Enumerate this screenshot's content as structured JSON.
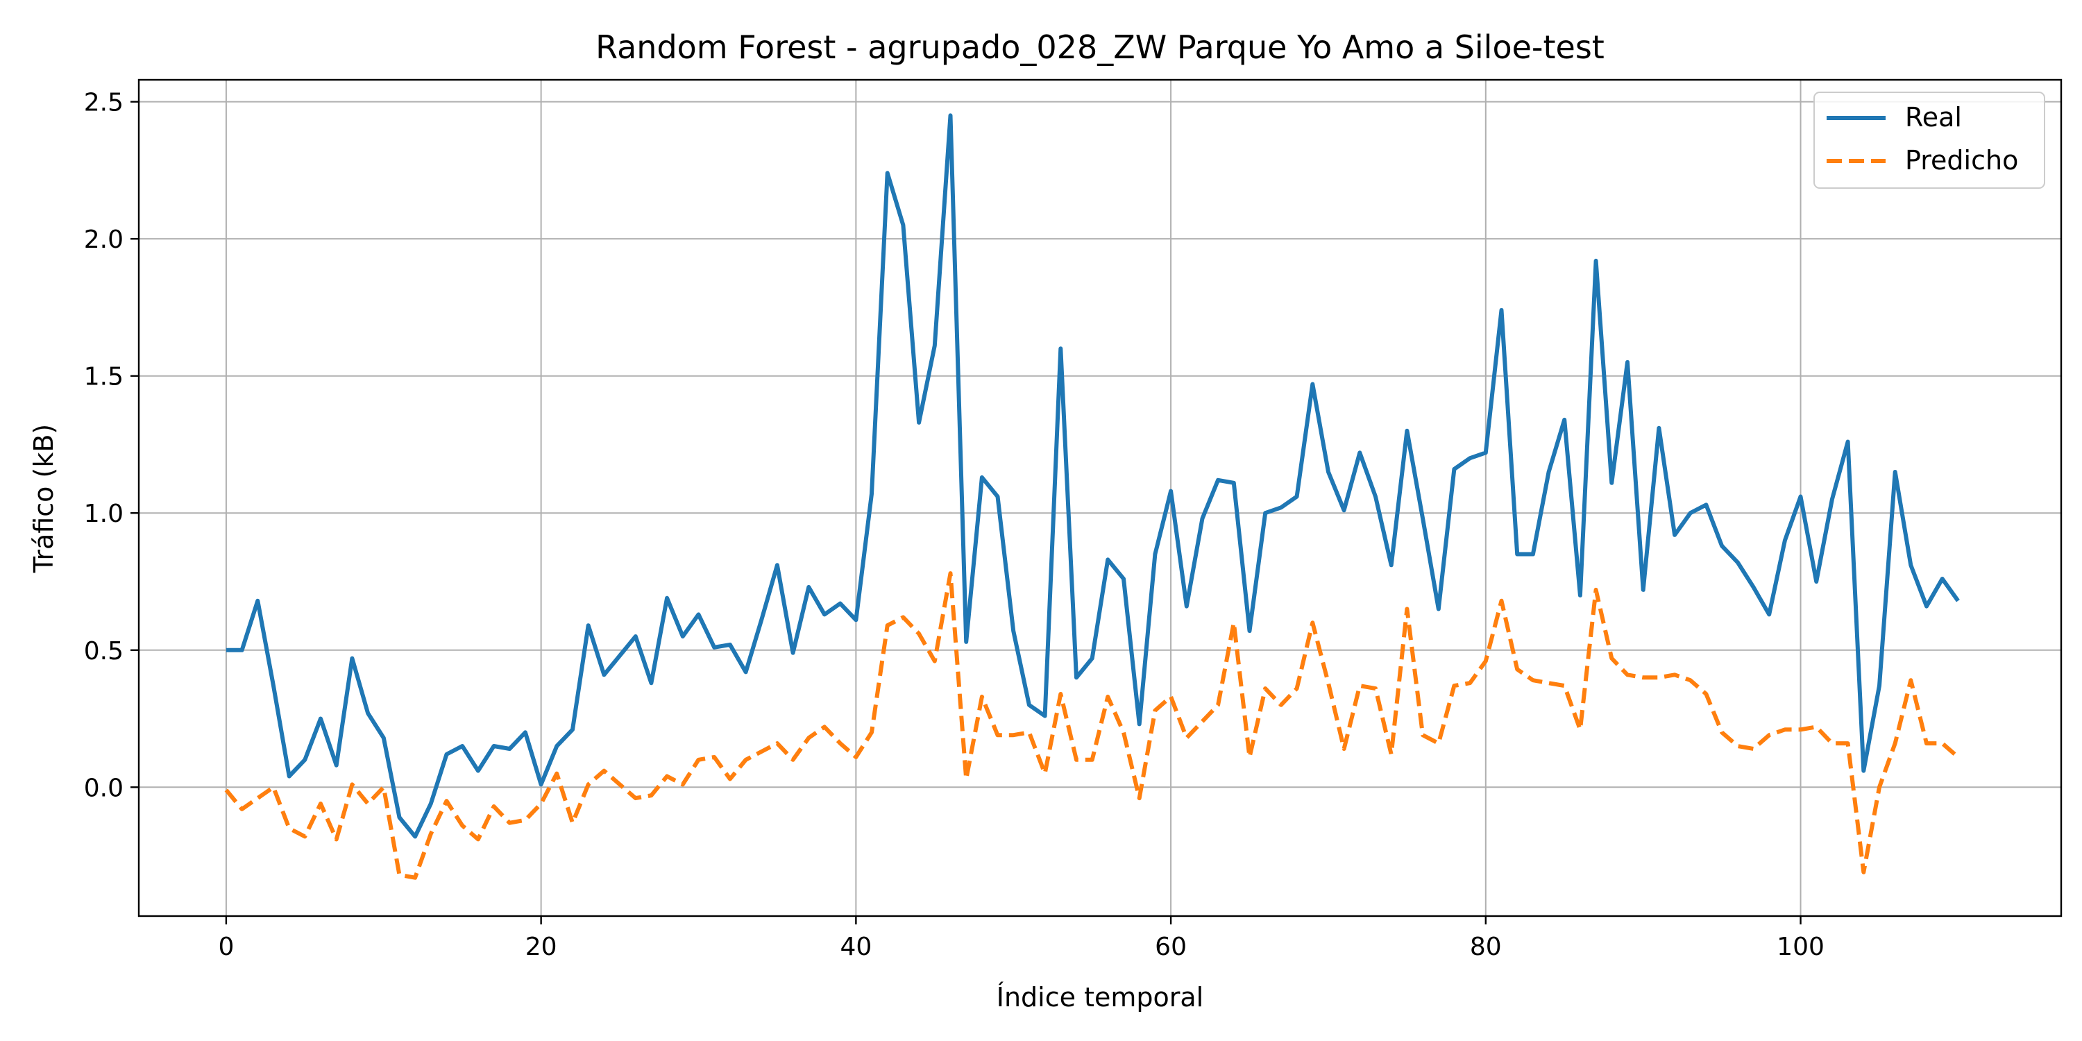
{
  "chart_data": {
    "type": "line",
    "title": "Random Forest - agrupado_028_ZW Parque Yo Amo a Siloe-test",
    "xlabel": "Índice temporal",
    "ylabel": "Tráfico (kB)",
    "xlim": [
      -5.55,
      116.55
    ],
    "ylim": [
      -0.47,
      2.58
    ],
    "xticks": [
      0,
      20,
      40,
      60,
      80,
      100
    ],
    "yticks": [
      0.0,
      0.5,
      1.0,
      1.5,
      2.0,
      2.5
    ],
    "ytick_labels": [
      "0.0",
      "0.5",
      "1.0",
      "1.5",
      "2.0",
      "2.5"
    ],
    "grid": true,
    "legend_position": "top-right",
    "x": [
      0,
      1,
      2,
      3,
      4,
      5,
      6,
      7,
      8,
      9,
      10,
      11,
      12,
      13,
      14,
      15,
      16,
      17,
      18,
      19,
      20,
      21,
      22,
      23,
      24,
      25,
      26,
      27,
      28,
      29,
      30,
      31,
      32,
      33,
      34,
      35,
      36,
      37,
      38,
      39,
      40,
      41,
      42,
      43,
      44,
      45,
      46,
      47,
      48,
      49,
      50,
      51,
      52,
      53,
      54,
      55,
      56,
      57,
      58,
      59,
      60,
      61,
      62,
      63,
      64,
      65,
      66,
      67,
      68,
      69,
      70,
      71,
      72,
      73,
      74,
      75,
      76,
      77,
      78,
      79,
      80,
      81,
      82,
      83,
      84,
      85,
      86,
      87,
      88,
      89,
      90,
      91,
      92,
      93,
      94,
      95,
      96,
      97,
      98,
      99,
      100,
      101,
      102,
      103,
      104,
      105,
      106,
      107,
      108,
      109,
      110
    ],
    "series": [
      {
        "name": "Real",
        "color": "#1f77b4",
        "dash": "solid",
        "values": [
          0.5,
          0.5,
          0.68,
          0.37,
          0.04,
          0.1,
          0.25,
          0.08,
          0.47,
          0.27,
          0.18,
          -0.11,
          -0.18,
          -0.06,
          0.12,
          0.15,
          0.06,
          0.15,
          0.14,
          0.2,
          0.01,
          0.15,
          0.21,
          0.59,
          0.41,
          0.48,
          0.55,
          0.38,
          0.69,
          0.55,
          0.63,
          0.51,
          0.52,
          0.42,
          0.61,
          0.81,
          0.49,
          0.73,
          0.63,
          0.67,
          0.61,
          1.07,
          2.24,
          2.05,
          1.33,
          1.61,
          2.45,
          0.53,
          1.13,
          1.06,
          0.57,
          0.3,
          0.26,
          1.6,
          0.4,
          0.47,
          0.83,
          0.76,
          0.23,
          0.85,
          1.08,
          0.66,
          0.98,
          1.12,
          1.11,
          0.57,
          1.0,
          1.02,
          1.06,
          1.47,
          1.15,
          1.01,
          1.22,
          1.06,
          0.81,
          1.3,
          0.98,
          0.65,
          1.16,
          1.2,
          1.22,
          1.74,
          0.85,
          0.85,
          1.15,
          1.34,
          0.7,
          1.92,
          1.11,
          1.55,
          0.72,
          1.31,
          0.92,
          1.0,
          1.03,
          0.88,
          0.82,
          0.73,
          0.63,
          0.9,
          1.06,
          0.75,
          1.05,
          1.26,
          0.06,
          0.37,
          1.15,
          0.81,
          0.66,
          0.76,
          0.68
        ]
      },
      {
        "name": "Predicho",
        "color": "#ff7f0e",
        "dash": "dashed",
        "values": [
          -0.01,
          -0.08,
          -0.04,
          0.0,
          -0.15,
          -0.18,
          -0.06,
          -0.19,
          0.01,
          -0.06,
          0.0,
          -0.32,
          -0.33,
          -0.17,
          -0.05,
          -0.14,
          -0.19,
          -0.07,
          -0.13,
          -0.12,
          -0.06,
          0.05,
          -0.13,
          0.01,
          0.06,
          0.01,
          -0.04,
          -0.03,
          0.04,
          0.01,
          0.1,
          0.11,
          0.03,
          0.1,
          0.13,
          0.16,
          0.1,
          0.18,
          0.22,
          0.16,
          0.11,
          0.2,
          0.59,
          0.62,
          0.56,
          0.46,
          0.78,
          0.03,
          0.33,
          0.19,
          0.19,
          0.2,
          0.05,
          0.34,
          0.1,
          0.1,
          0.33,
          0.2,
          -0.04,
          0.28,
          0.33,
          0.18,
          0.24,
          0.3,
          0.6,
          0.11,
          0.36,
          0.3,
          0.36,
          0.6,
          0.38,
          0.14,
          0.37,
          0.36,
          0.12,
          0.65,
          0.19,
          0.16,
          0.37,
          0.38,
          0.46,
          0.68,
          0.43,
          0.39,
          0.38,
          0.37,
          0.21,
          0.72,
          0.47,
          0.41,
          0.4,
          0.4,
          0.41,
          0.39,
          0.34,
          0.2,
          0.15,
          0.14,
          0.19,
          0.21,
          0.21,
          0.22,
          0.16,
          0.16,
          -0.31,
          0.0,
          0.16,
          0.39,
          0.16,
          0.16,
          0.11
        ]
      }
    ]
  }
}
